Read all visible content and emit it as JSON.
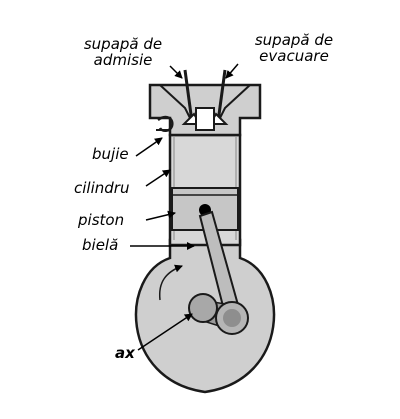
{
  "labels": {
    "intake_valve": [
      "supapă de",
      "admisie"
    ],
    "exhaust_valve": [
      "supapă de",
      "evacuare"
    ],
    "spark_plug": "bujie",
    "cylinder": "cilindru",
    "piston": "piston",
    "connecting_rod": "bielă",
    "shaft": "ax"
  },
  "colors": {
    "background": "#ffffff",
    "body_fill": "#d0d0d0",
    "body_stroke": "#1a1a1a",
    "crank_fill": "#a8a8a8",
    "pointer": "#000000"
  }
}
